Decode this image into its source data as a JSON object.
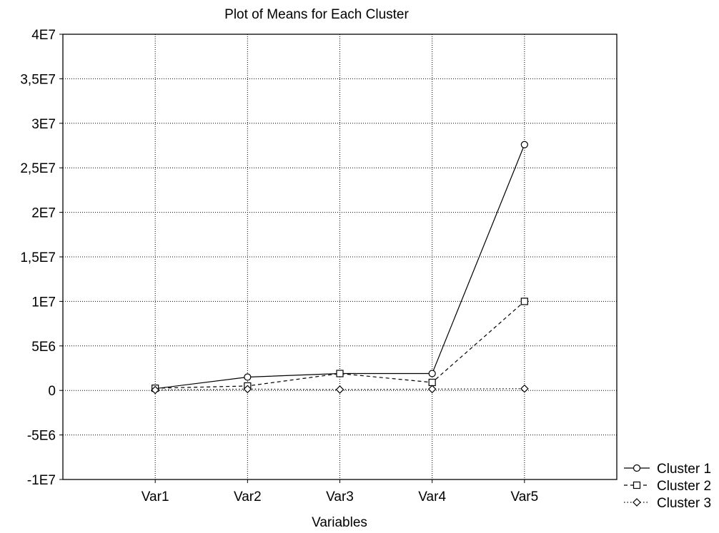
{
  "chart_data": {
    "type": "line",
    "title": "Plot of Means for Each Cluster",
    "xlabel": "Variables",
    "ylabel": "",
    "categories": [
      "Var1",
      "Var2",
      "Var3",
      "Var4",
      "Var5"
    ],
    "ylim": [
      -10000000,
      40000000
    ],
    "yticks": [
      -10000000,
      -5000000,
      0,
      5000000,
      10000000,
      15000000,
      20000000,
      25000000,
      30000000,
      35000000,
      40000000
    ],
    "ytick_labels": [
      "-1E7",
      "-5E6",
      "0",
      "5E6",
      "1E7",
      "1,5E7",
      "2E7",
      "2,5E7",
      "3E7",
      "3,5E7",
      "4E7"
    ],
    "grid": true,
    "legend_position": "bottom-right",
    "series": [
      {
        "name": "Cluster 1",
        "values": [
          200000,
          1500000,
          1900000,
          1900000,
          27600000
        ],
        "line_style": "solid",
        "marker": "circle",
        "color": "#000000"
      },
      {
        "name": "Cluster 2",
        "values": [
          250000,
          500000,
          1900000,
          900000,
          10000000
        ],
        "line_style": "dashed",
        "marker": "square",
        "color": "#000000"
      },
      {
        "name": "Cluster 3",
        "values": [
          50000,
          150000,
          100000,
          150000,
          200000
        ],
        "line_style": "dotted",
        "marker": "diamond",
        "color": "#000000"
      }
    ]
  }
}
